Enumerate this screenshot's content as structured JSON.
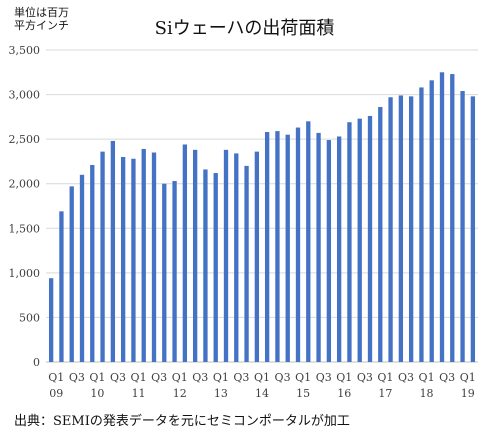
{
  "unit_note": [
    "単位は百万",
    "平方インチ"
  ],
  "source_note": "出典：SEMIの発表データを元にセミコンポータルが加工",
  "colors": {
    "bar": "#4472C4",
    "grid": "#d9d9d9",
    "axis": "#bfbfbf",
    "text": "#404040"
  },
  "chart_data": {
    "type": "bar",
    "title": "Siウェーハの出荷面積",
    "xlabel": "",
    "ylabel": "",
    "ylim": [
      0,
      3500
    ],
    "yticks": [
      0,
      500,
      1000,
      1500,
      2000,
      2500,
      3000,
      3500
    ],
    "ytick_labels": [
      "0",
      "500",
      "1,000",
      "1,500",
      "2,000",
      "2,500",
      "3,000",
      "3,500"
    ],
    "grid": true,
    "categories": [
      "Q1 09",
      "Q2 09",
      "Q3 09",
      "Q4 09",
      "Q1 10",
      "Q2 10",
      "Q3 10",
      "Q4 10",
      "Q1 11",
      "Q2 11",
      "Q3 11",
      "Q4 11",
      "Q1 12",
      "Q2 12",
      "Q3 12",
      "Q4 12",
      "Q1 13",
      "Q2 13",
      "Q3 13",
      "Q4 13",
      "Q1 14",
      "Q2 14",
      "Q3 14",
      "Q4 14",
      "Q1 15",
      "Q2 15",
      "Q3 15",
      "Q4 15",
      "Q1 16",
      "Q2 16",
      "Q3 16",
      "Q4 16",
      "Q1 17",
      "Q2 17",
      "Q3 17",
      "Q4 17",
      "Q1 18",
      "Q2 18",
      "Q3 18",
      "Q4 18",
      "Q1 19",
      "Q2 19"
    ],
    "values": [
      940,
      1690,
      1970,
      2100,
      2210,
      2360,
      2480,
      2300,
      2280,
      2390,
      2350,
      2000,
      2030,
      2440,
      2380,
      2160,
      2120,
      2380,
      2340,
      2200,
      2360,
      2580,
      2590,
      2550,
      2630,
      2700,
      2570,
      2490,
      2530,
      2690,
      2730,
      2760,
      2860,
      2970,
      2990,
      2980,
      3080,
      3160,
      3250,
      3230,
      3040,
      2980
    ],
    "x_quarter_labels": [
      "Q1",
      "Q3",
      "Q1",
      "Q3",
      "Q1",
      "Q3",
      "Q1",
      "Q3",
      "Q1",
      "Q3",
      "Q1",
      "Q3",
      "Q1",
      "Q3",
      "Q1",
      "Q3",
      "Q1",
      "Q3",
      "Q1",
      "Q3",
      "Q1"
    ],
    "x_year_labels": [
      "09",
      "10",
      "11",
      "12",
      "13",
      "14",
      "15",
      "16",
      "17",
      "18",
      "19"
    ]
  }
}
